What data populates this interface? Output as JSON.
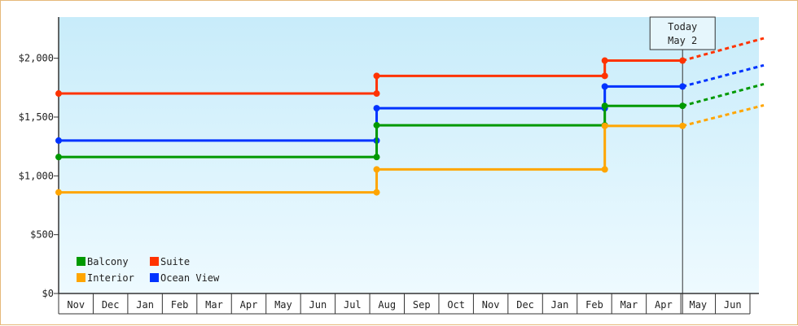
{
  "chart_data": {
    "type": "line",
    "step": true,
    "title": "",
    "xlabel": "",
    "ylabel": "",
    "ylim": [
      0,
      2350
    ],
    "yticks": [
      {
        "value": 0,
        "label": "$0"
      },
      {
        "value": 500,
        "label": "$500"
      },
      {
        "value": 1000,
        "label": "$1,000"
      },
      {
        "value": 1500,
        "label": "$1,500"
      },
      {
        "value": 2000,
        "label": "$2,000"
      }
    ],
    "months": [
      "Nov",
      "Dec",
      "Jan",
      "Feb",
      "Mar",
      "Apr",
      "May",
      "Jun",
      "Jul",
      "Aug",
      "Sep",
      "Oct",
      "Nov",
      "Dec",
      "Jan",
      "Feb",
      "Mar",
      "Apr",
      "May",
      "Jun"
    ],
    "x_range_months": [
      0,
      20
    ],
    "today": {
      "line1": "Today",
      "line2": "May 2",
      "x": 18.05
    },
    "grid": false,
    "legend_position": "bottom-left",
    "series": [
      {
        "name": "Suite",
        "color": "#ff3300",
        "points": [
          [
            0,
            1700
          ],
          [
            9.2,
            1700
          ],
          [
            9.2,
            1850
          ],
          [
            15.8,
            1850
          ],
          [
            15.8,
            1980
          ],
          [
            18.05,
            1980
          ]
        ],
        "projection": [
          [
            18.05,
            1980
          ],
          [
            20.4,
            2170
          ]
        ]
      },
      {
        "name": "Ocean View",
        "color": "#0033ff",
        "points": [
          [
            0,
            1300
          ],
          [
            9.2,
            1300
          ],
          [
            9.2,
            1575
          ],
          [
            15.8,
            1575
          ],
          [
            15.8,
            1760
          ],
          [
            18.05,
            1760
          ]
        ],
        "projection": [
          [
            18.05,
            1760
          ],
          [
            20.4,
            1940
          ]
        ]
      },
      {
        "name": "Balcony",
        "color": "#009900",
        "points": [
          [
            0,
            1160
          ],
          [
            9.2,
            1160
          ],
          [
            9.2,
            1430
          ],
          [
            15.8,
            1430
          ],
          [
            15.8,
            1595
          ],
          [
            18.05,
            1595
          ]
        ],
        "projection": [
          [
            18.05,
            1595
          ],
          [
            20.4,
            1780
          ]
        ]
      },
      {
        "name": "Interior",
        "color": "#ffa500",
        "points": [
          [
            0,
            860
          ],
          [
            9.2,
            860
          ],
          [
            9.2,
            1055
          ],
          [
            15.8,
            1055
          ],
          [
            15.8,
            1425
          ],
          [
            18.05,
            1425
          ]
        ],
        "projection": [
          [
            18.05,
            1425
          ],
          [
            20.4,
            1600
          ]
        ]
      }
    ],
    "legend": [
      {
        "name": "Balcony",
        "color": "#009900"
      },
      {
        "name": "Suite",
        "color": "#ff3300"
      },
      {
        "name": "Interior",
        "color": "#ffa500"
      },
      {
        "name": "Ocean View",
        "color": "#0033ff"
      }
    ]
  }
}
